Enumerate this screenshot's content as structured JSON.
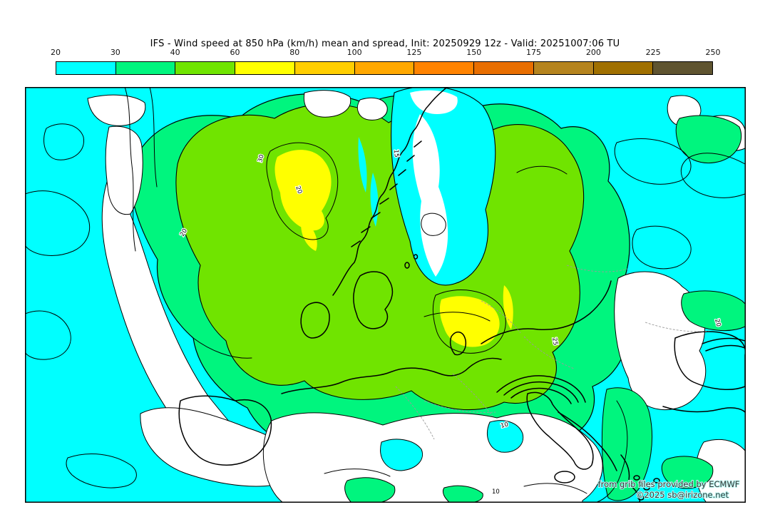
{
  "header": {
    "title": "IFS - Wind speed at 850 hPa (km/h) mean and spread, Init: 20250929 12z - Valid: 20251007:06 TU"
  },
  "colorbar": {
    "tick_labels": [
      "20",
      "30",
      "40",
      "60",
      "80",
      "100",
      "125",
      "150",
      "175",
      "200",
      "225",
      "250"
    ],
    "segment_colors": [
      "#00FFFF",
      "#00F57E",
      "#70E400",
      "#FFFF00",
      "#FFCE00",
      "#FFA800",
      "#FF8300",
      "#E86E00",
      "#B5841E",
      "#A07000",
      "#5F5430"
    ]
  },
  "map": {
    "contour_labels": [
      "30",
      "20",
      "15",
      "20",
      "10",
      "10",
      "25",
      "20"
    ],
    "attribution_line1": "from grib files provided by ECMWF",
    "attribution_line2": "©2025 sb@irizone.net"
  },
  "chart_data": {
    "type": "heatmap",
    "title": "IFS - Wind speed at 850 hPa (km/h) mean and spread, Init: 20250929 12z - Valid: 20251007:06 TU",
    "model": "IFS",
    "variable": "Wind speed at 850 hPa (km/h): ensemble mean shown as color fill, ensemble spread shown as black contour lines",
    "init": "20250929 12z",
    "valid": "20251007:06 TU",
    "legend_position": "top horizontal colorbar",
    "colorbar_levels": [
      20,
      30,
      40,
      60,
      80,
      100,
      125,
      150,
      175,
      200,
      225,
      250
    ],
    "colorbar_colors": [
      "#00FFFF",
      "#00F57E",
      "#70E400",
      "#FFFF00",
      "#FFCE00",
      "#FFA800",
      "#FF8300",
      "#E86E00",
      "#B5841E",
      "#A07000",
      "#5F5430"
    ],
    "fill_value_colors": {
      "below_20": "#FFFFFF",
      "20_30": "#00FFFF",
      "30_40": "#00F57E",
      "40_60": "#70E400",
      "60_80": "#FFFF00"
    },
    "spread_contour_labels_visible": [
      10,
      15,
      20,
      25,
      30
    ],
    "field_summary": [
      "Cyan (20-30 km/h) covers the Atlantic west, eastern Europe and the Mediterranean east",
      "Broad green band (30-60 km/h) over western/central Europe, the North Sea and Scandinavia",
      "Yellow maxima (60-80 km/h) southeast of Iceland and over the North Sea / southern Norway",
      "White areas (<20 km/h) over the mid-Atlantic ridge, Italy and central Mediterranean, the Scandinavian mountains and western Russia"
    ]
  }
}
